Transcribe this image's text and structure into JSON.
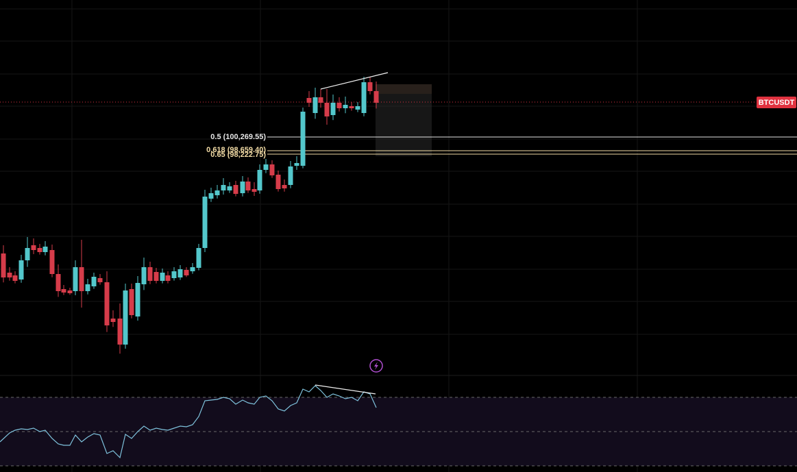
{
  "symbol": "BTCUSDT",
  "fib_levels": [
    {
      "label": "0.5 (100,269.55)"
    },
    {
      "label": "0.618 (98,659.40)"
    },
    {
      "label": "0.65 (98,222.75)"
    }
  ]
}
